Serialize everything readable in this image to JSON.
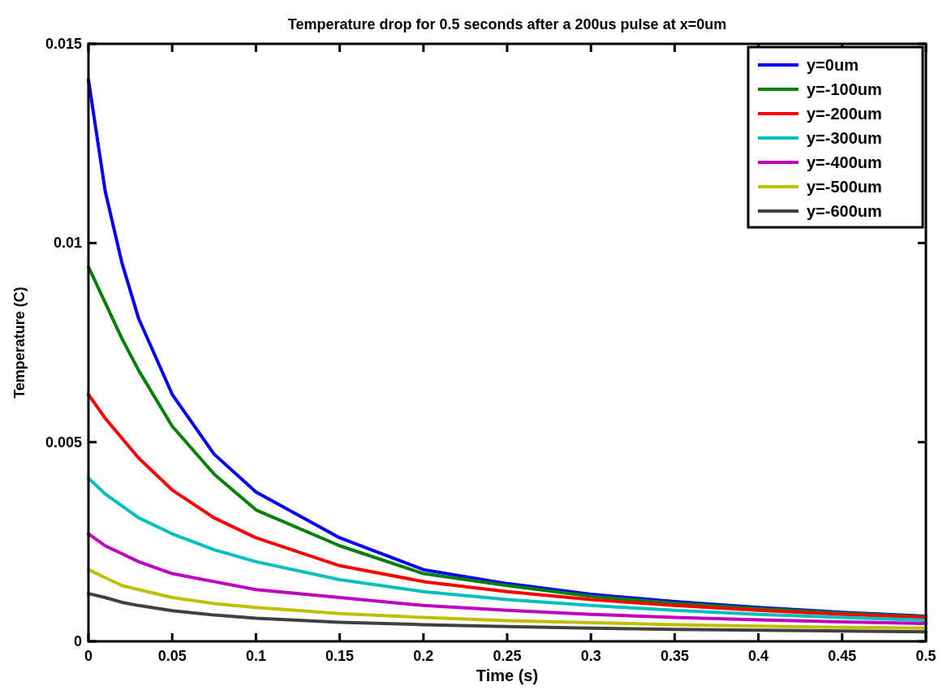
{
  "chart_data": {
    "type": "line",
    "title": "Temperature drop for 0.5 seconds after a 200us pulse at x=0um",
    "xlabel": "Time (s)",
    "ylabel": "Temperature (C)",
    "x": [
      0,
      0.01,
      0.02,
      0.03,
      0.05,
      0.075,
      0.1,
      0.15,
      0.2,
      0.25,
      0.3,
      0.35,
      0.4,
      0.45,
      0.5
    ],
    "series": [
      {
        "name": "y=0um",
        "color": "#0000ff",
        "values": [
          0.0141,
          0.0113,
          0.0095,
          0.0081,
          0.0062,
          0.0047,
          0.00375,
          0.0026,
          0.0018,
          0.00145,
          0.00118,
          0.001,
          0.00085,
          0.00073,
          0.00063
        ]
      },
      {
        "name": "y=-100um",
        "color": "#008000",
        "values": [
          0.0094,
          0.0085,
          0.0076,
          0.0068,
          0.0054,
          0.0042,
          0.0033,
          0.0024,
          0.0017,
          0.0014,
          0.00113,
          0.00096,
          0.00082,
          0.00071,
          0.00062
        ]
      },
      {
        "name": "y=-200um",
        "color": "#ff0000",
        "values": [
          0.0062,
          0.0056,
          0.0051,
          0.0046,
          0.0038,
          0.0031,
          0.0026,
          0.0019,
          0.0015,
          0.00125,
          0.00105,
          0.0009,
          0.00078,
          0.00068,
          0.0006
        ]
      },
      {
        "name": "y=-300um",
        "color": "#00bfbf",
        "values": [
          0.0041,
          0.0037,
          0.0034,
          0.0031,
          0.0027,
          0.0023,
          0.002,
          0.00155,
          0.00125,
          0.00105,
          0.0009,
          0.00078,
          0.00068,
          0.0006,
          0.00053
        ]
      },
      {
        "name": "y=-400um",
        "color": "#bf00bf",
        "values": [
          0.0027,
          0.0024,
          0.0022,
          0.002,
          0.0017,
          0.0015,
          0.0013,
          0.0011,
          0.0009,
          0.00078,
          0.00068,
          0.0006,
          0.00054,
          0.00049,
          0.00045
        ]
      },
      {
        "name": "y=-500um",
        "color": "#bfbf00",
        "values": [
          0.0018,
          0.0016,
          0.0014,
          0.0013,
          0.0011,
          0.00095,
          0.00085,
          0.0007,
          0.0006,
          0.00052,
          0.00047,
          0.00042,
          0.00038,
          0.00035,
          0.00033
        ]
      },
      {
        "name": "y=-600um",
        "color": "#404040",
        "values": [
          0.0012,
          0.0011,
          0.00098,
          0.0009,
          0.00077,
          0.00066,
          0.00058,
          0.00048,
          0.00042,
          0.00037,
          0.00033,
          0.0003,
          0.00028,
          0.00026,
          0.00024
        ]
      }
    ],
    "xlim": [
      0,
      0.5
    ],
    "xticks": [
      0,
      0.05,
      0.1,
      0.15,
      0.2,
      0.25,
      0.3,
      0.35,
      0.4,
      0.45,
      0.5
    ],
    "ylim": [
      0,
      0.015
    ],
    "yticks": [
      0,
      0.005,
      0.01,
      0.015
    ],
    "legend": "top right",
    "marker": "none",
    "line_style": "solid"
  }
}
